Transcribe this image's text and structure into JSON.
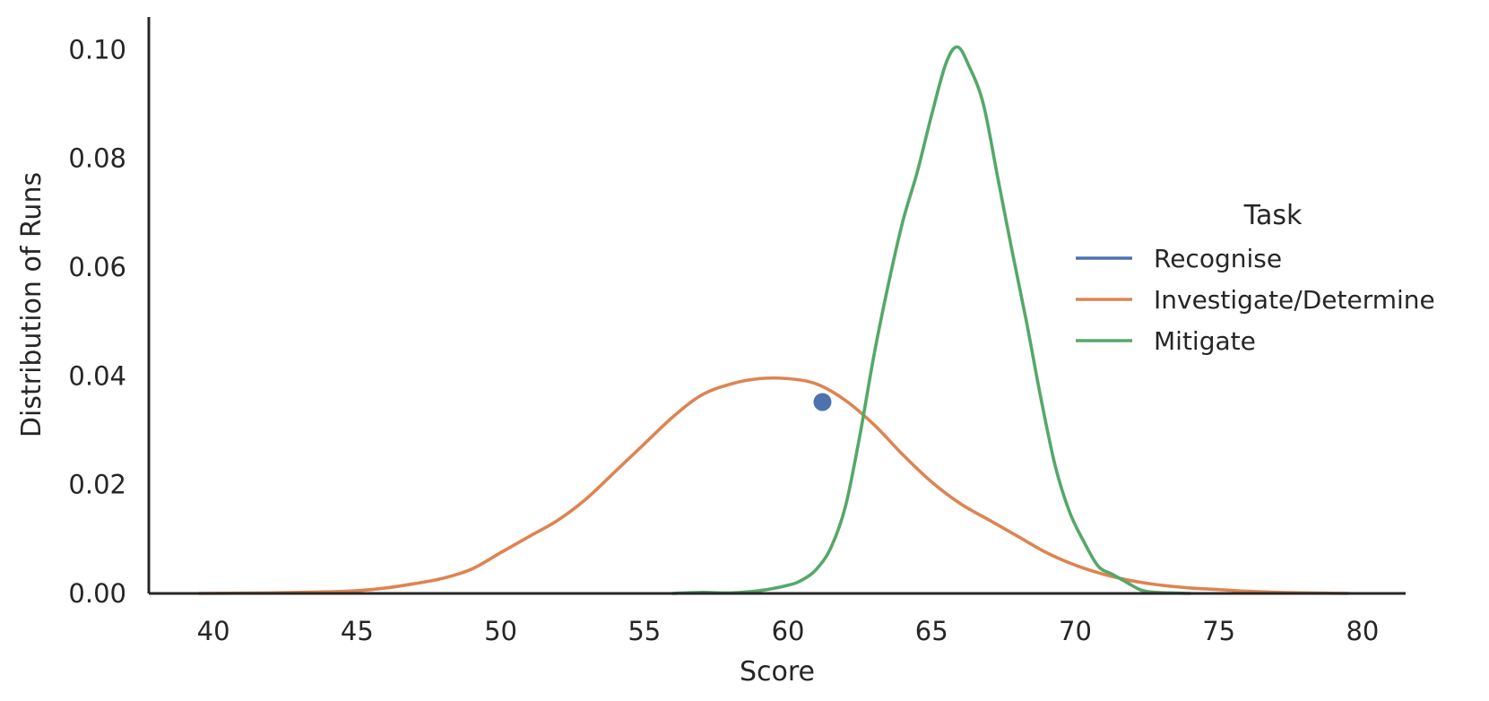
{
  "chart_data": {
    "type": "line",
    "xlabel": "Score",
    "ylabel": "Distribution of Runs",
    "xlim": [
      37.75,
      81.5
    ],
    "ylim": [
      0,
      0.106
    ],
    "xticks": [
      40,
      45,
      50,
      55,
      60,
      65,
      70,
      75,
      80
    ],
    "yticks": [
      0.0,
      0.02,
      0.04,
      0.06,
      0.08,
      0.1
    ],
    "xtick_labels": [
      "40",
      "45",
      "50",
      "55",
      "60",
      "65",
      "70",
      "75",
      "80"
    ],
    "ytick_labels": [
      "0.00",
      "0.02",
      "0.04",
      "0.06",
      "0.08",
      "0.10"
    ],
    "grid": false,
    "legend": {
      "title": "Task",
      "position": "center-right"
    },
    "series": [
      {
        "name": "Recognise",
        "color": "#4c72b0",
        "marker": "point",
        "x": [
          61.2
        ],
        "y": [
          0.0352
        ]
      },
      {
        "name": "Investigate/Determine",
        "color": "#dd8452",
        "x": [
          39.5,
          42,
          44,
          45,
          46,
          47,
          48,
          49,
          50,
          51,
          52,
          53,
          54,
          55,
          56,
          57,
          58,
          59,
          60,
          61,
          62,
          63,
          64,
          65,
          66,
          67,
          68,
          69,
          70,
          71,
          72,
          73,
          74,
          75,
          76,
          77,
          78,
          79.5
        ],
        "y": [
          0.0,
          0.0001,
          0.0003,
          0.0005,
          0.001,
          0.0018,
          0.0028,
          0.0045,
          0.0075,
          0.0105,
          0.0135,
          0.0175,
          0.0225,
          0.0275,
          0.0325,
          0.0365,
          0.0385,
          0.0395,
          0.0395,
          0.0385,
          0.0355,
          0.031,
          0.0255,
          0.0205,
          0.0165,
          0.0135,
          0.0105,
          0.0075,
          0.0052,
          0.0035,
          0.0023,
          0.0015,
          0.001,
          0.0007,
          0.0004,
          0.0002,
          0.0001,
          0.0
        ]
      },
      {
        "name": "Mitigate",
        "color": "#55a868",
        "x": [
          56,
          57,
          58,
          59,
          60,
          60.5,
          61,
          61.5,
          62,
          62.5,
          63,
          63.5,
          64,
          64.5,
          65,
          65.5,
          65.9,
          66.3,
          66.8,
          67.3,
          67.8,
          68.3,
          68.8,
          69.3,
          69.8,
          70.3,
          70.8,
          71.3,
          71.8,
          72.3,
          72.8,
          73.3,
          74
        ],
        "y": [
          0.0,
          0.0002,
          0.0001,
          0.0005,
          0.0015,
          0.0025,
          0.0045,
          0.0085,
          0.016,
          0.029,
          0.044,
          0.057,
          0.0685,
          0.0775,
          0.088,
          0.0975,
          0.1005,
          0.097,
          0.09,
          0.0765,
          0.063,
          0.05,
          0.036,
          0.0235,
          0.015,
          0.0095,
          0.005,
          0.0035,
          0.002,
          0.0006,
          0.0002,
          0.0001,
          0.0
        ]
      }
    ]
  }
}
